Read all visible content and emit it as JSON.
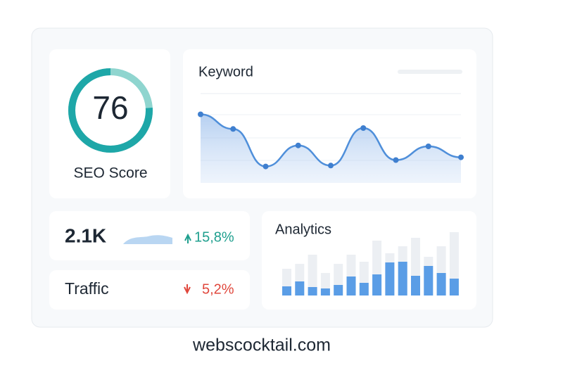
{
  "seo": {
    "score": 76,
    "label": "SEO Score"
  },
  "keyword": {
    "title": "Keyword",
    "values": [
      75,
      59,
      18,
      41,
      19,
      60,
      25,
      40,
      28
    ]
  },
  "stats": {
    "value": "2.1K",
    "change_up": "15,8%",
    "label": "Traffic",
    "change_down": "5,2%"
  },
  "analytics": {
    "title": "Analytics",
    "background_values": [
      38,
      45,
      58,
      32,
      45,
      58,
      48,
      78,
      60,
      70,
      82,
      55,
      70,
      90
    ],
    "values": [
      13,
      20,
      12,
      10,
      15,
      27,
      18,
      30,
      47,
      48,
      28,
      42,
      32,
      24
    ]
  },
  "footer": "webscocktail.com"
}
